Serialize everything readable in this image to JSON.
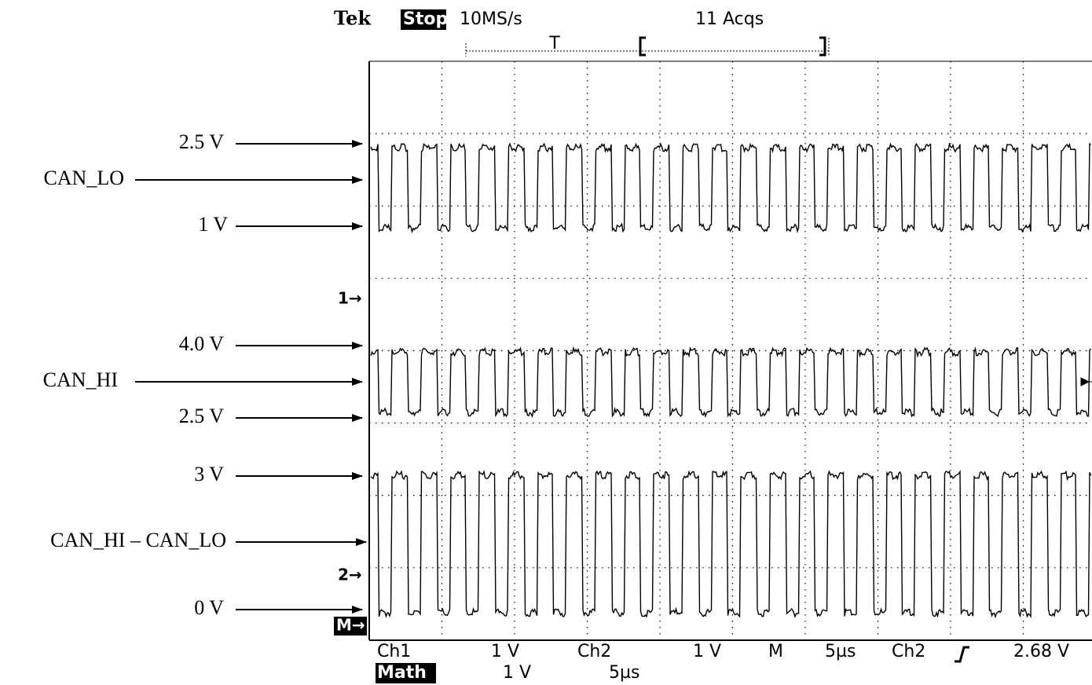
{
  "header": {
    "brand": "Tek",
    "status": "Stop:",
    "sample_rate": "10MS/s",
    "acquisitions": "11 Acqs",
    "trigger_marker": "T"
  },
  "annotations": [
    "2.5 V",
    "CAN_LO",
    "1 V",
    "4.0 V",
    "CAN_HI",
    "2.5 V",
    "3 V",
    "CAN_HI – CAN_LO",
    "0 V"
  ],
  "channel_markers": [
    "1→",
    "2→",
    "M→"
  ],
  "footer": {
    "row1": [
      "Ch1",
      "1 V",
      "Ch2",
      "1 V",
      "M",
      "5µs",
      "Ch2",
      "2.68 V"
    ],
    "row2": [
      "Math",
      "1 V",
      "5µs"
    ]
  }
}
